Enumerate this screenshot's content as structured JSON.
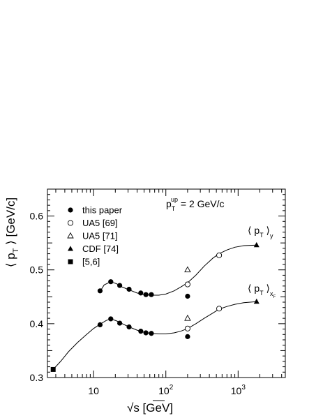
{
  "chart_data": {
    "type": "scatter",
    "x_scale": "log",
    "xlim": [
      2.3,
      4500
    ],
    "ylim": [
      0.3,
      0.65
    ],
    "x_ticks": [
      {
        "value": 10,
        "base": "10",
        "exp": ""
      },
      {
        "value": 100,
        "base": "10",
        "exp": "2"
      },
      {
        "value": 1000,
        "base": "10",
        "exp": "3"
      }
    ],
    "y_ticks": [
      {
        "value": 0.3,
        "label": "0.3"
      },
      {
        "value": 0.4,
        "label": "0.4"
      },
      {
        "value": 0.5,
        "label": "0.5"
      },
      {
        "value": 0.6,
        "label": "0.6"
      }
    ],
    "xlabel": {
      "prefix": "√s",
      "suffix": " [GeV]"
    },
    "ylabel": {
      "open": "⟨ p",
      "sub": "T",
      "close": " ⟩ [GeV/c]"
    },
    "grid": false,
    "legend_position": "top-left",
    "annotation": {
      "p": "p",
      "sub": "T",
      "sup": "up",
      "rest": " = 2 GeV/c"
    },
    "curve_labels": [
      {
        "id": "y",
        "open": "⟨ p",
        "sub": "T",
        "close": " ⟩",
        "sub2": "y"
      },
      {
        "id": "xF",
        "open": "⟨ p",
        "sub": "T",
        "close": " ⟩",
        "sub2": "x",
        "sub3": "F"
      }
    ],
    "series": [
      {
        "name": "this paper",
        "marker": "filled-circle",
        "points": [
          [
            12.3,
            0.461
          ],
          [
            17.3,
            0.478
          ],
          [
            23,
            0.471
          ],
          [
            31,
            0.464
          ],
          [
            45,
            0.457
          ],
          [
            53,
            0.454
          ],
          [
            63,
            0.454
          ],
          [
            200,
            0.451
          ],
          [
            12.3,
            0.398
          ],
          [
            17.3,
            0.409
          ],
          [
            23,
            0.401
          ],
          [
            31,
            0.394
          ],
          [
            45,
            0.386
          ],
          [
            53,
            0.383
          ],
          [
            63,
            0.382
          ],
          [
            200,
            0.376
          ]
        ]
      },
      {
        "name": "UA5 [69]",
        "marker": "open-circle",
        "points": [
          [
            200,
            0.473
          ],
          [
            546,
            0.527
          ],
          [
            200,
            0.391
          ],
          [
            546,
            0.428
          ]
        ]
      },
      {
        "name": "UA5 [71]",
        "marker": "open-triangle",
        "points": [
          [
            200,
            0.5
          ],
          [
            200,
            0.41
          ]
        ]
      },
      {
        "name": "CDF [74]",
        "marker": "filled-triangle",
        "points": [
          [
            1800,
            0.546
          ],
          [
            1800,
            0.441
          ]
        ]
      },
      {
        "name": "[5,6]",
        "marker": "filled-square",
        "points": [
          [
            2.76,
            0.315
          ]
        ]
      }
    ],
    "curves": [
      {
        "id": "y",
        "points": [
          [
            12.3,
            0.46
          ],
          [
            14,
            0.472
          ],
          [
            17.3,
            0.478
          ],
          [
            21,
            0.474
          ],
          [
            25,
            0.468
          ],
          [
            31,
            0.463
          ],
          [
            40,
            0.457
          ],
          [
            50,
            0.454
          ],
          [
            63,
            0.453
          ],
          [
            80,
            0.453
          ],
          [
            100,
            0.455
          ],
          [
            130,
            0.461
          ],
          [
            160,
            0.468
          ],
          [
            200,
            0.476
          ],
          [
            260,
            0.49
          ],
          [
            340,
            0.507
          ],
          [
            450,
            0.522
          ],
          [
            546,
            0.53
          ],
          [
            700,
            0.537
          ],
          [
            900,
            0.542
          ],
          [
            1200,
            0.545
          ],
          [
            1800,
            0.546
          ]
        ]
      },
      {
        "id": "xF",
        "points": [
          [
            2.76,
            0.315
          ],
          [
            3.5,
            0.33
          ],
          [
            4.5,
            0.348
          ],
          [
            6,
            0.365
          ],
          [
            8,
            0.38
          ],
          [
            10,
            0.391
          ],
          [
            12.3,
            0.399
          ],
          [
            15,
            0.406
          ],
          [
            17.3,
            0.409
          ],
          [
            21,
            0.405
          ],
          [
            25,
            0.4
          ],
          [
            31,
            0.394
          ],
          [
            40,
            0.388
          ],
          [
            50,
            0.384
          ],
          [
            63,
            0.382
          ],
          [
            80,
            0.381
          ],
          [
            100,
            0.381
          ],
          [
            130,
            0.383
          ],
          [
            160,
            0.386
          ],
          [
            200,
            0.391
          ],
          [
            260,
            0.4
          ],
          [
            340,
            0.41
          ],
          [
            450,
            0.42
          ],
          [
            546,
            0.427
          ],
          [
            700,
            0.432
          ],
          [
            900,
            0.436
          ],
          [
            1200,
            0.439
          ],
          [
            1800,
            0.441
          ]
        ]
      }
    ]
  }
}
